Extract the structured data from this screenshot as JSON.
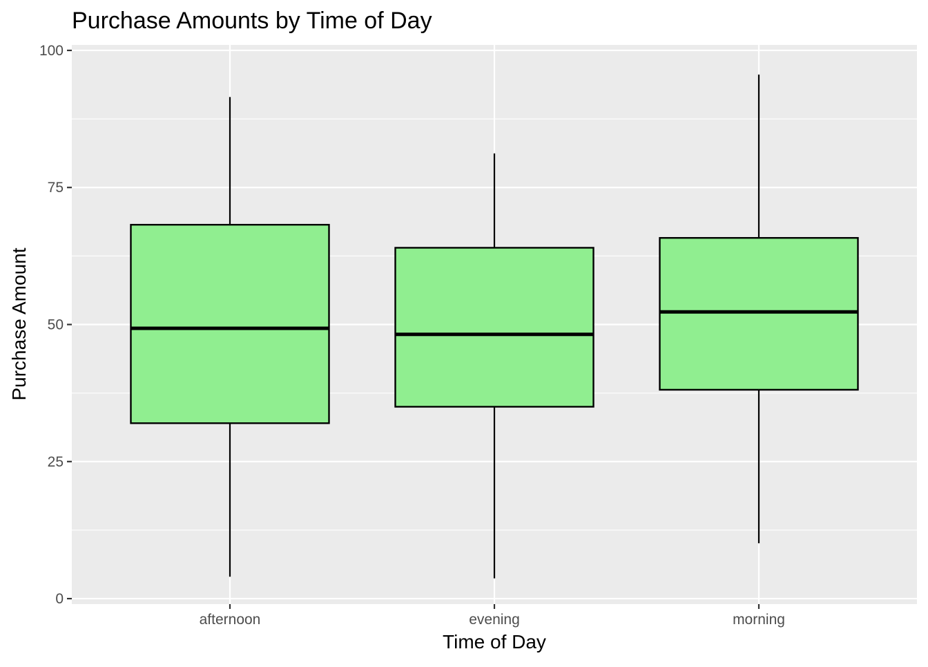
{
  "chart_data": {
    "type": "boxplot",
    "title": "Purchase Amounts by Time of Day",
    "xlabel": "Time of Day",
    "ylabel": "Purchase Amount",
    "ylim": [
      -1,
      101
    ],
    "y_ticks": [
      {
        "value": 0,
        "label": "0"
      },
      {
        "value": 25,
        "label": "25"
      },
      {
        "value": 50,
        "label": "50"
      },
      {
        "value": 75,
        "label": "75"
      },
      {
        "value": 100,
        "label": "100"
      }
    ],
    "y_minor_ticks": [
      12.5,
      37.5,
      62.5,
      87.5
    ],
    "categories": [
      "afternoon",
      "evening",
      "morning"
    ],
    "boxes": [
      {
        "category": "afternoon",
        "whisker_low": 4,
        "q1": 32,
        "median": 49.3,
        "q3": 68.2,
        "whisker_high": 91.5
      },
      {
        "category": "evening",
        "whisker_low": 3.7,
        "q1": 35,
        "median": 48.2,
        "q3": 64,
        "whisker_high": 81.2
      },
      {
        "category": "morning",
        "whisker_low": 10.1,
        "q1": 38.1,
        "median": 52.3,
        "q3": 65.8,
        "whisker_high": 95.6
      }
    ],
    "grid": true,
    "colors": {
      "box_fill": "#90EE90",
      "box_stroke": "#000000",
      "panel_background": "#EBEBEB",
      "grid_line": "#FFFFFF",
      "tick_text": "#4D4D4D",
      "tick_mark": "#333333"
    }
  }
}
